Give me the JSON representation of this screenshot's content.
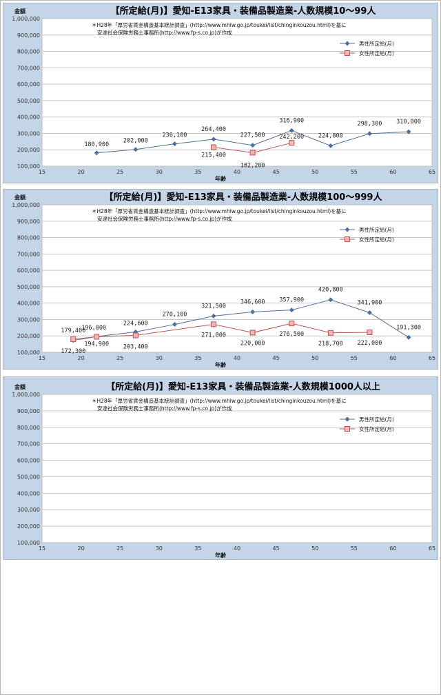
{
  "chart_data": [
    {
      "type": "line",
      "title": "【所定給(月)】愛知-E13家具・装備品製造業-人数規模10～99人",
      "ylabel": "金額",
      "xlabel": "年齢",
      "xlim": [
        15,
        65
      ],
      "ylim": [
        100000,
        1000000
      ],
      "x_ticks": [
        "15",
        "20",
        "25",
        "30",
        "35",
        "40",
        "45",
        "50",
        "55",
        "60",
        "65"
      ],
      "y_ticks": [
        "100,000",
        "200,000",
        "300,000",
        "400,000",
        "500,000",
        "600,000",
        "700,000",
        "800,000",
        "900,000",
        "1,000,000"
      ],
      "note": [
        "＊H28年「厚労省賃金構造基本統計調査」(http://www.mhlw.go.jp/toukei/list/chinginkouzou.html)を基に",
        "安達社会保険労務士事務所(http://www.fp-s.co.jp)が作成"
      ],
      "legend": "top-right",
      "series": [
        {
          "name": "男性所定給(月)",
          "color": "#4f6f9e",
          "marker": "diamond",
          "x": [
            22,
            27,
            32,
            37,
            42,
            47,
            52,
            57,
            62
          ],
          "y": [
            180900,
            202000,
            236100,
            264400,
            227500,
            316900,
            224800,
            298300,
            310000
          ],
          "labels": [
            "180,900",
            "202,000",
            "236,100",
            "264,400",
            "227,500",
            "316,900",
            "224,800",
            "298,300",
            "310,000"
          ]
        },
        {
          "name": "女性所定給(月)",
          "color": "#c0504d",
          "marker": "square",
          "x": [
            37,
            42,
            47
          ],
          "y": [
            215400,
            182200,
            242200
          ],
          "labels": [
            "215,400",
            "182,200",
            "242,200"
          ]
        }
      ]
    },
    {
      "type": "line",
      "title": "【所定給(月)】愛知-E13家具・装備品製造業-人数規模100～999人",
      "ylabel": "金額",
      "xlabel": "年齢",
      "xlim": [
        15,
        65
      ],
      "ylim": [
        100000,
        1000000
      ],
      "x_ticks": [
        "15",
        "20",
        "25",
        "30",
        "35",
        "40",
        "45",
        "50",
        "55",
        "60",
        "65"
      ],
      "y_ticks": [
        "100,000",
        "200,000",
        "300,000",
        "400,000",
        "500,000",
        "600,000",
        "700,000",
        "800,000",
        "900,000",
        "1,000,000"
      ],
      "note": [
        "＊H28年「厚労省賃金構造基本統計調査」(http://www.mhlw.go.jp/toukei/list/chinginkouzou.html)を基に",
        "安達社会保険労務士事務所(http://www.fp-s.co.jp)が作成"
      ],
      "legend": "top-right",
      "series": [
        {
          "name": "男性所定給(月)",
          "color": "#4f6f9e",
          "marker": "diamond",
          "x": [
            19,
            22,
            27,
            32,
            37,
            42,
            47,
            52,
            57,
            62
          ],
          "y": [
            172300,
            196000,
            224600,
            270100,
            321500,
            346600,
            357900,
            420800,
            341900,
            191300
          ],
          "labels": [
            "172,300",
            "196,000",
            "224,600",
            "270,100",
            "321,500",
            "346,600",
            "357,900",
            "420,800",
            "341,900",
            "191,300"
          ]
        },
        {
          "name": "女性所定給(月)",
          "color": "#c0504d",
          "marker": "square",
          "x": [
            19,
            22,
            27,
            37,
            42,
            47,
            52,
            57
          ],
          "y": [
            179400,
            194900,
            203400,
            271000,
            220000,
            276500,
            218700,
            222000
          ],
          "labels": [
            "179,400",
            "194,900",
            "203,400",
            "271,000",
            "220,000",
            "276,500",
            "218,700",
            "222,000"
          ]
        }
      ]
    },
    {
      "type": "line",
      "title": "【所定給(月)】愛知-E13家具・装備品製造業-人数規模1000人以上",
      "ylabel": "金額",
      "xlabel": "年齢",
      "xlim": [
        15,
        65
      ],
      "ylim": [
        100000,
        1000000
      ],
      "x_ticks": [
        "15",
        "20",
        "25",
        "30",
        "35",
        "40",
        "45",
        "50",
        "55",
        "60",
        "65"
      ],
      "y_ticks": [
        "100,000",
        "200,000",
        "300,000",
        "400,000",
        "500,000",
        "600,000",
        "700,000",
        "800,000",
        "900,000",
        "1,000,000"
      ],
      "note": [
        "＊H28年「厚労省賃金構造基本統計調査」(http://www.mhlw.go.jp/toukei/list/chinginkouzou.html)を基に",
        "安達社会保険労務士事務所(http://www.fp-s.co.jp)が作成"
      ],
      "legend": "top-right",
      "series": [
        {
          "name": "男性所定給(月)",
          "color": "#4f6f9e",
          "marker": "diamond",
          "x": [],
          "y": [],
          "labels": []
        },
        {
          "name": "女性所定給(月)",
          "color": "#c0504d",
          "marker": "square",
          "x": [],
          "y": [],
          "labels": []
        }
      ]
    }
  ]
}
